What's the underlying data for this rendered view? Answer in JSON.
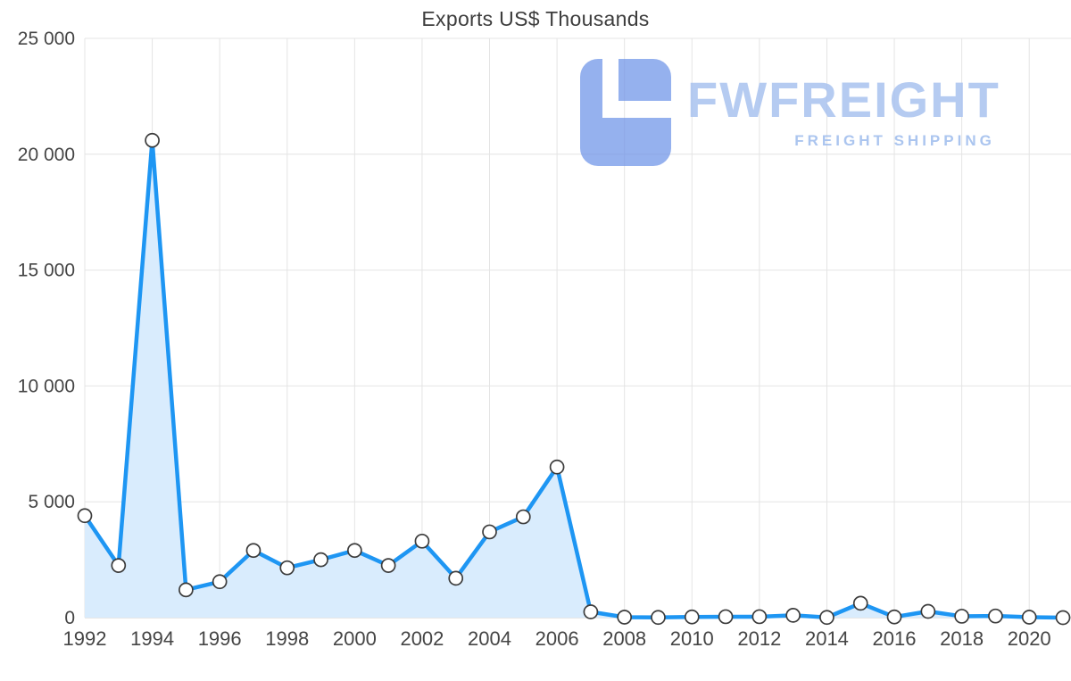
{
  "page": {
    "title": "Exports US$ Thousands"
  },
  "watermark": {
    "brand": "FWFREIGHT",
    "tagline": "FREIGHT SHIPPING",
    "logo_color": "#6d93e8",
    "brand_color": "#a9c2ef",
    "tagline_color": "#9dbbed"
  },
  "chart_data": {
    "type": "line",
    "title": "Exports US$ Thousands",
    "x": [
      1992,
      1993,
      1994,
      1995,
      1996,
      1997,
      1998,
      1999,
      2000,
      2001,
      2002,
      2003,
      2004,
      2005,
      2006,
      2007,
      2008,
      2009,
      2010,
      2011,
      2012,
      2013,
      2014,
      2015,
      2016,
      2017,
      2018,
      2019,
      2020,
      2021
    ],
    "values": [
      4400,
      2250,
      20600,
      1200,
      1550,
      2900,
      2150,
      2500,
      2900,
      2250,
      3300,
      1700,
      3700,
      4350,
      6500,
      250,
      20,
      10,
      30,
      40,
      40,
      100,
      10,
      620,
      30,
      270,
      60,
      70,
      20,
      0
    ],
    "x_tick_labels": [
      "1992",
      "1994",
      "1996",
      "1998",
      "2000",
      "2002",
      "2004",
      "2006",
      "2008",
      "2010",
      "2012",
      "2014",
      "2016",
      "2018",
      "2020"
    ],
    "y_tick_labels": [
      "0",
      "5 000",
      "10 000",
      "15 000",
      "20 000",
      "25 000"
    ],
    "ylim": [
      0,
      25000
    ],
    "grid": true,
    "legend": "none",
    "line_color": "#1e96f3",
    "fill_color": "#d9ecfd",
    "marker_fill": "#ffffff",
    "marker_stroke": "#3c3c3c",
    "grid_color": "#e4e4e4",
    "axis_color": "#cfcfcf",
    "tick_color": "#454545"
  }
}
